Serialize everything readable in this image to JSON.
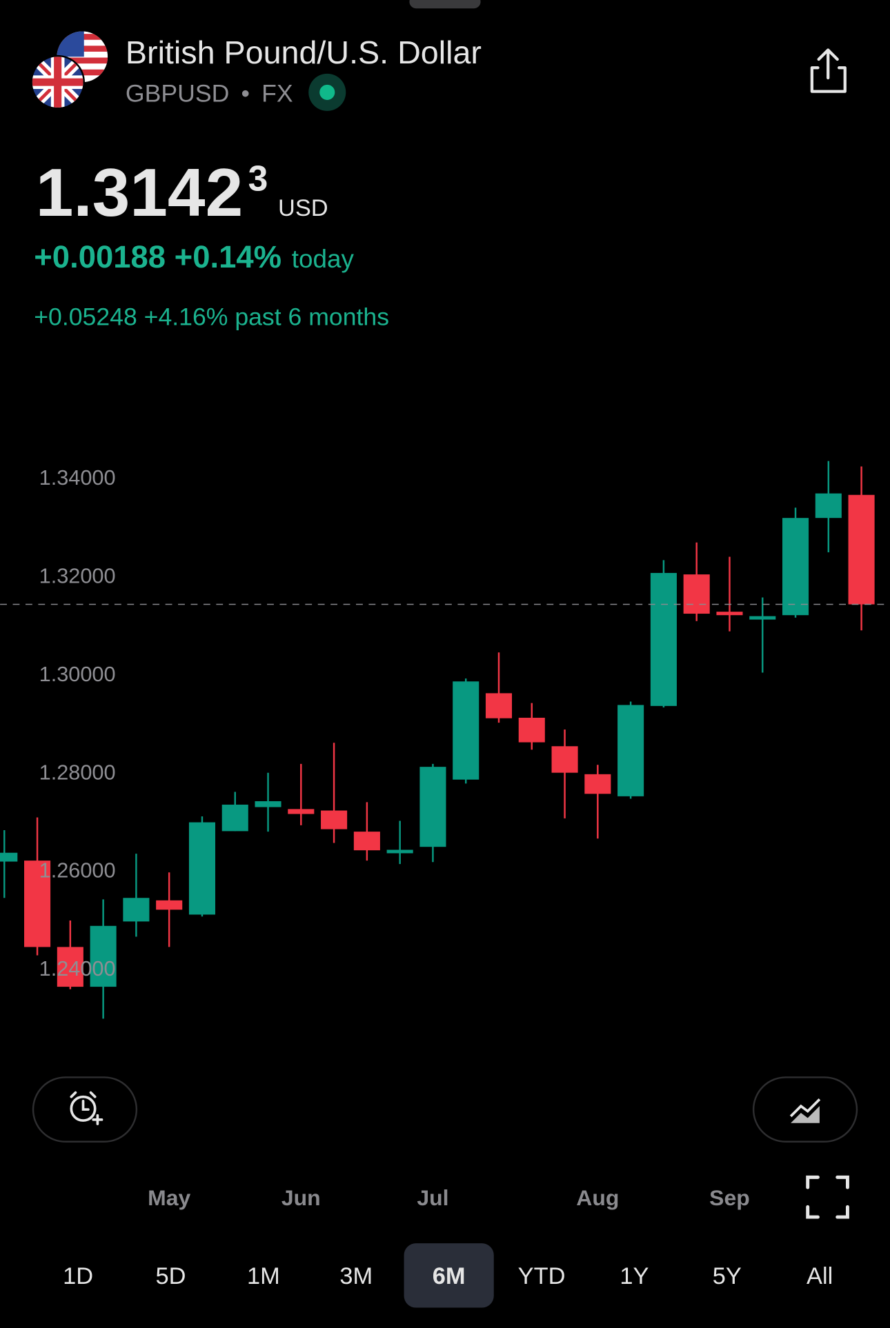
{
  "header": {
    "title": "British Pound/U.S. Dollar",
    "symbol": "GBPUSD",
    "separator": "•",
    "market": "FX"
  },
  "quote": {
    "price": "1.3142",
    "price_sup": "3",
    "currency": "USD",
    "change_today": "+0.00188 +0.14%",
    "today_label": "today",
    "change_period": "+0.05248 +4.16% past 6 months"
  },
  "chart_data": {
    "type": "candlestick",
    "categories": [
      null,
      null,
      null,
      null,
      null,
      "May",
      null,
      null,
      null,
      "Jun",
      null,
      null,
      null,
      "Jul",
      null,
      null,
      null,
      null,
      "Aug",
      null,
      null,
      null,
      "Sep",
      null,
      null,
      null,
      null
    ],
    "up_color": "#089981",
    "down_color": "#f23645",
    "candles": [
      {
        "open": 1.2617,
        "high": 1.2681,
        "low": 1.2543,
        "close": 1.2635
      },
      {
        "open": 1.2619,
        "high": 1.2707,
        "low": 1.2426,
        "close": 1.2443
      },
      {
        "open": 1.2443,
        "high": 1.2497,
        "low": 1.2357,
        "close": 1.2362
      },
      {
        "open": 1.2362,
        "high": 1.254,
        "low": 1.2297,
        "close": 1.2486
      },
      {
        "open": 1.2495,
        "high": 1.2633,
        "low": 1.2464,
        "close": 1.2543
      },
      {
        "open": 1.2538,
        "high": 1.2595,
        "low": 1.2443,
        "close": 1.2519
      },
      {
        "open": 1.2509,
        "high": 1.2709,
        "low": 1.2505,
        "close": 1.2697
      },
      {
        "open": 1.2679,
        "high": 1.2759,
        "low": 1.2679,
        "close": 1.2733
      },
      {
        "open": 1.2728,
        "high": 1.2798,
        "low": 1.2678,
        "close": 1.274
      },
      {
        "open": 1.2724,
        "high": 1.2816,
        "low": 1.2691,
        "close": 1.2714
      },
      {
        "open": 1.2721,
        "high": 1.2859,
        "low": 1.2655,
        "close": 1.2683
      },
      {
        "open": 1.2678,
        "high": 1.2738,
        "low": 1.2619,
        "close": 1.264
      },
      {
        "open": 1.2634,
        "high": 1.27,
        "low": 1.2612,
        "close": 1.2641
      },
      {
        "open": 1.2647,
        "high": 1.2816,
        "low": 1.2616,
        "close": 1.281
      },
      {
        "open": 1.2784,
        "high": 1.299,
        "low": 1.2776,
        "close": 1.2984
      },
      {
        "open": 1.296,
        "high": 1.3043,
        "low": 1.29,
        "close": 1.2909
      },
      {
        "open": 1.291,
        "high": 1.294,
        "low": 1.2845,
        "close": 1.286
      },
      {
        "open": 1.2852,
        "high": 1.2886,
        "low": 1.2705,
        "close": 1.2798
      },
      {
        "open": 1.2795,
        "high": 1.2814,
        "low": 1.2664,
        "close": 1.2755
      },
      {
        "open": 1.275,
        "high": 1.2943,
        "low": 1.2745,
        "close": 1.2936
      },
      {
        "open": 1.2934,
        "high": 1.3231,
        "low": 1.2931,
        "close": 1.3205
      },
      {
        "open": 1.3202,
        "high": 1.3267,
        "low": 1.3107,
        "close": 1.3122
      },
      {
        "open": 1.3126,
        "high": 1.3238,
        "low": 1.3086,
        "close": 1.3119
      },
      {
        "open": 1.311,
        "high": 1.3155,
        "low": 1.3002,
        "close": 1.3117
      },
      {
        "open": 1.3119,
        "high": 1.3338,
        "low": 1.3114,
        "close": 1.3317
      },
      {
        "open": 1.3317,
        "high": 1.3433,
        "low": 1.3247,
        "close": 1.3367
      },
      {
        "open": 1.3364,
        "high": 1.3422,
        "low": 1.3088,
        "close": 1.3141
      }
    ],
    "ylim": [
      1.225,
      1.3475
    ],
    "yticks": [
      {
        "value": 1.34,
        "label": "1.34000"
      },
      {
        "value": 1.32,
        "label": "1.32000"
      },
      {
        "value": 1.3,
        "label": "1.30000"
      },
      {
        "value": 1.28,
        "label": "1.28000"
      },
      {
        "value": 1.26,
        "label": "1.26000"
      },
      {
        "value": 1.24,
        "label": "1.24000"
      }
    ]
  },
  "ranges": [
    "1D",
    "5D",
    "1M",
    "3M",
    "6M",
    "YTD",
    "1Y",
    "5Y",
    "All"
  ],
  "selected_range_index": 4
}
